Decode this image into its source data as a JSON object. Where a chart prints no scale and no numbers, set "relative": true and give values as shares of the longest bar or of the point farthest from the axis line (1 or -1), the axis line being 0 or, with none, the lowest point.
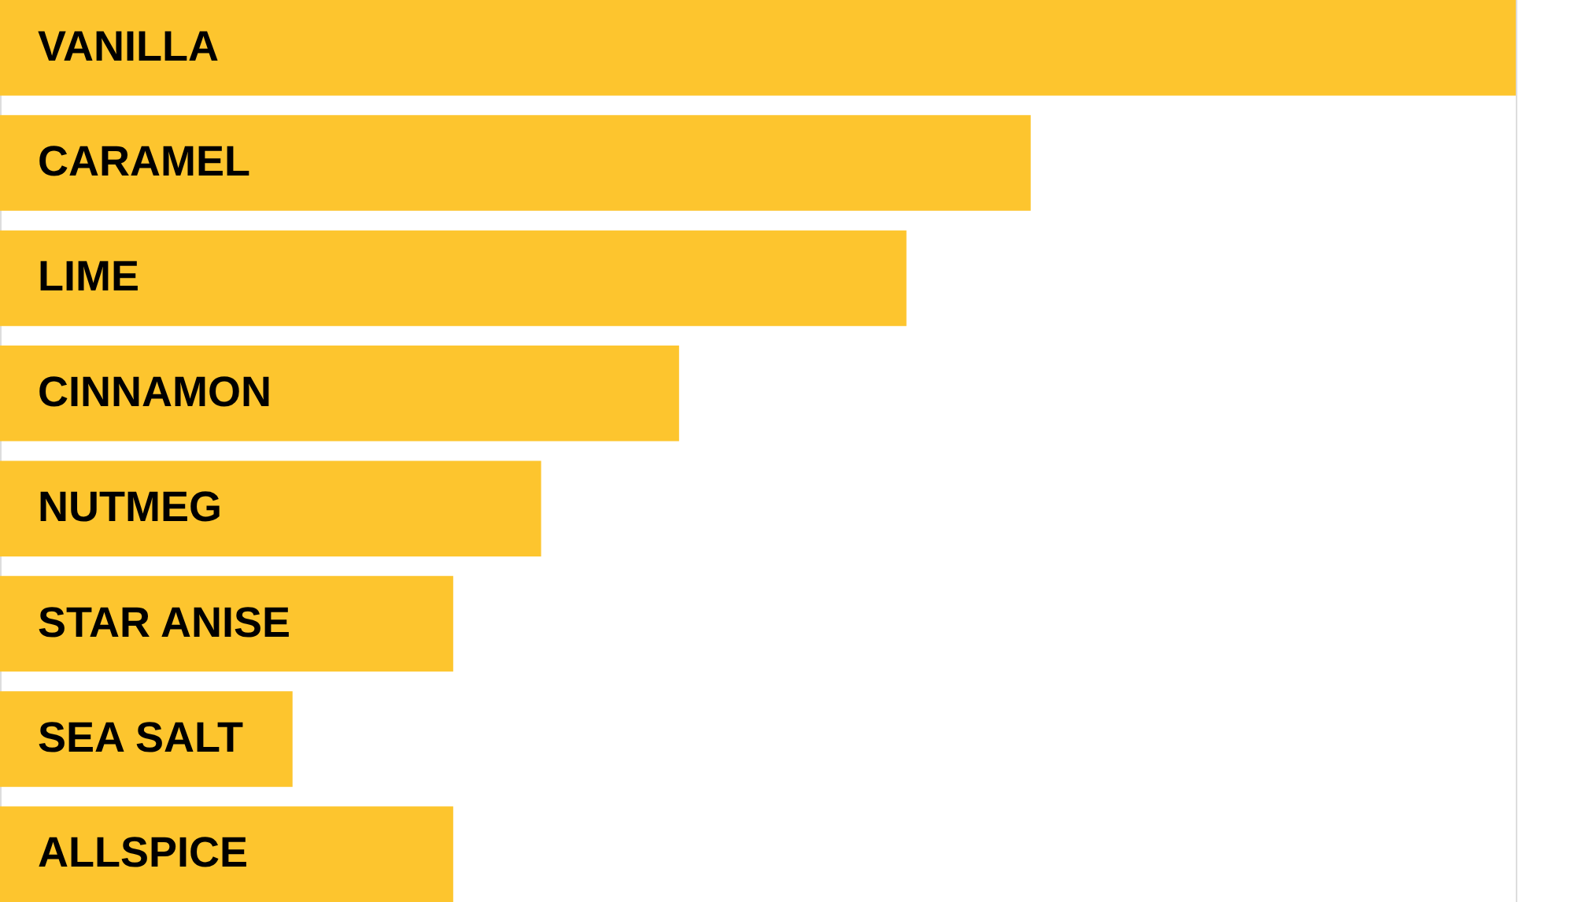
{
  "chart_data": {
    "type": "bar",
    "orientation": "horizontal",
    "relative": true,
    "categories": [
      "VANILLA",
      "CARAMEL",
      "LIME",
      "CINNAMON",
      "NUTMEG",
      "STAR ANISE",
      "SEA SALT",
      "ALLSPICE"
    ],
    "values": [
      1,
      0.68,
      0.598,
      0.448,
      0.357,
      0.299,
      0.193,
      0.299
    ],
    "color": "#fdc52e"
  }
}
